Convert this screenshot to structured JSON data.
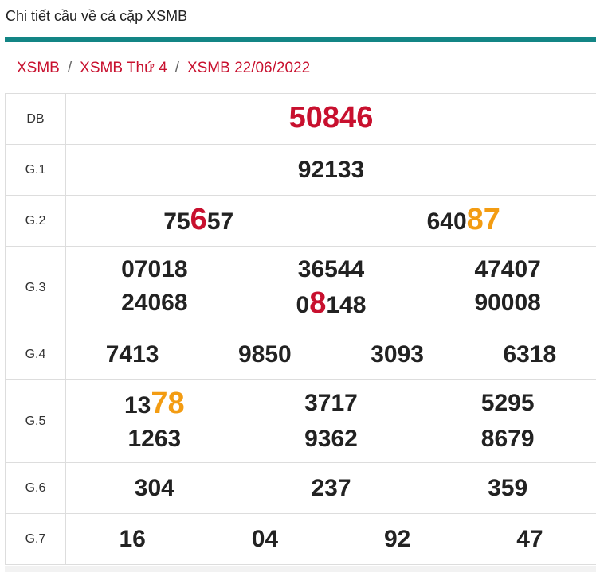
{
  "header": {
    "title": "Chi tiết cầu về cả cặp XSMB"
  },
  "breadcrumb": {
    "items": [
      "XSMB",
      "XSMB Thứ 4",
      "XSMB 22/06/2022"
    ],
    "separator": "/"
  },
  "table": {
    "rows": [
      {
        "label": "DB",
        "numbers": [
          [
            {
              "text": "50846",
              "color": "#c8102e"
            }
          ]
        ]
      },
      {
        "label": "G.1",
        "numbers": [
          [
            {
              "text": "92133"
            }
          ]
        ]
      },
      {
        "label": "G.2",
        "numbers": [
          [
            {
              "text": "75"
            },
            {
              "text": "6",
              "color": "#c8102e"
            },
            {
              "text": "57"
            }
          ],
          [
            {
              "text": "640"
            },
            {
              "text": "87",
              "color": "#f39c12"
            }
          ]
        ]
      },
      {
        "label": "G.3",
        "numbers": [
          [
            {
              "text": "07018"
            }
          ],
          [
            {
              "text": "36544"
            }
          ],
          [
            {
              "text": "47407"
            }
          ],
          [
            {
              "text": "24068"
            }
          ],
          [
            {
              "text": "0"
            },
            {
              "text": "8",
              "color": "#c8102e"
            },
            {
              "text": "148"
            }
          ],
          [
            {
              "text": "90008"
            }
          ]
        ]
      },
      {
        "label": "G.4",
        "numbers": [
          [
            {
              "text": "7413"
            }
          ],
          [
            {
              "text": "9850"
            }
          ],
          [
            {
              "text": "3093"
            }
          ],
          [
            {
              "text": "6318"
            }
          ]
        ]
      },
      {
        "label": "G.5",
        "numbers": [
          [
            {
              "text": "13"
            },
            {
              "text": "78",
              "color": "#f39c12"
            }
          ],
          [
            {
              "text": "3717"
            }
          ],
          [
            {
              "text": "5295"
            }
          ],
          [
            {
              "text": "1263"
            }
          ],
          [
            {
              "text": "9362"
            }
          ],
          [
            {
              "text": "8679"
            }
          ]
        ]
      },
      {
        "label": "G.6",
        "numbers": [
          [
            {
              "text": "304"
            }
          ],
          [
            {
              "text": "237"
            }
          ],
          [
            {
              "text": "359"
            }
          ]
        ]
      },
      {
        "label": "G.7",
        "numbers": [
          [
            {
              "text": "16"
            }
          ],
          [
            {
              "text": "04"
            }
          ],
          [
            {
              "text": "92"
            }
          ],
          [
            {
              "text": "47"
            }
          ]
        ]
      }
    ]
  }
}
